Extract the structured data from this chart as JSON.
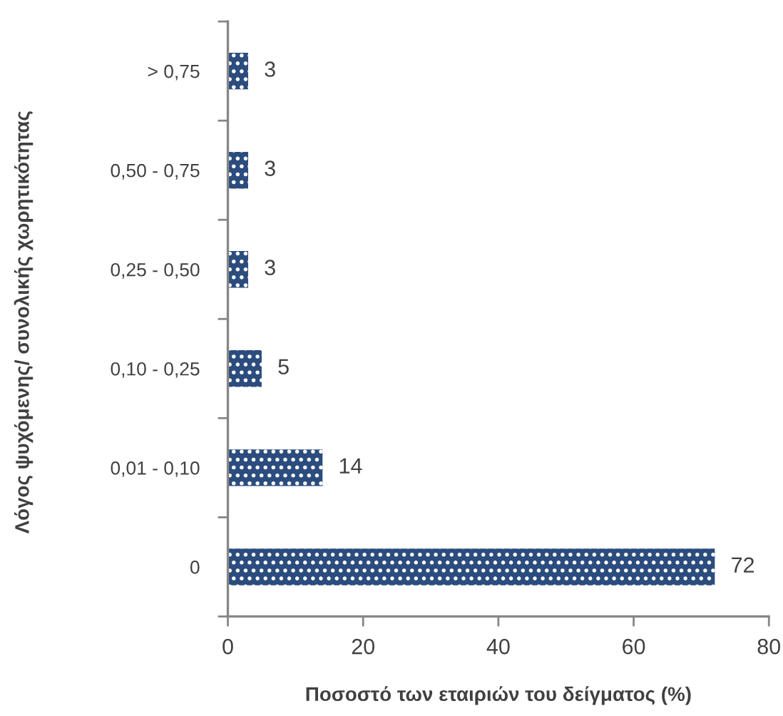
{
  "chart_data": {
    "type": "bar",
    "orientation": "horizontal",
    "categories": [
      "> 0,75",
      "0,50 - 0,75",
      "0,25 - 0,50",
      "0,10 - 0,25",
      "0,01 - 0,10",
      "0"
    ],
    "values": [
      3,
      3,
      3,
      5,
      14,
      72
    ],
    "color": "#2b4c7e",
    "data_labels": true,
    "xlim": [
      0,
      80
    ],
    "xticks": [
      0,
      20,
      40,
      60,
      80
    ],
    "xlabel": "Ποσοστό των εταιριών του δείγματος (%)",
    "ylabel": "Λόγος ψυχόμενης/ συνολικής χωρητικότητας"
  }
}
